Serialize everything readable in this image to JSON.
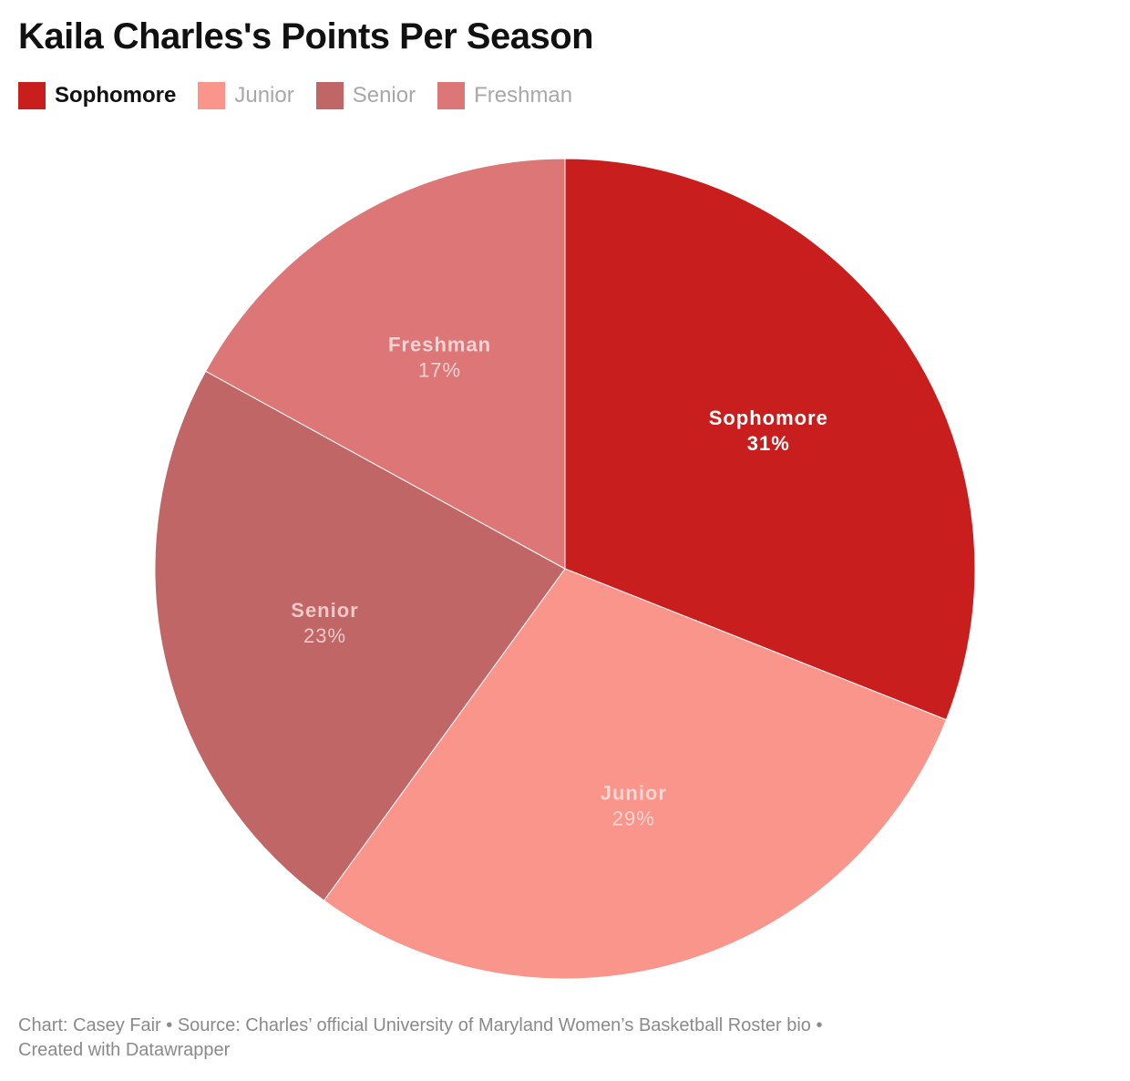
{
  "title": "Kaila Charles's Points Per Season",
  "legend": [
    {
      "label": "Sophomore",
      "color": "#c81e1e",
      "active": true
    },
    {
      "label": "Junior",
      "color": "#f9958b",
      "active": false
    },
    {
      "label": "Senior",
      "color": "#c06666",
      "active": false
    },
    {
      "label": "Freshman",
      "color": "#dd7777",
      "active": false
    }
  ],
  "chart_data": {
    "type": "pie",
    "categories": [
      "Sophomore",
      "Junior",
      "Senior",
      "Freshman"
    ],
    "values": [
      31,
      29,
      23,
      17
    ],
    "labels": [
      "31%",
      "29%",
      "23%",
      "17%"
    ],
    "colors": [
      "#c81e1e",
      "#f9958b",
      "#c06666",
      "#dd7777"
    ],
    "label_colors": [
      "#ffffff",
      "#f5d6d3",
      "#f0c8c8",
      "#f5d3d3"
    ],
    "title": "Kaila Charles's Points Per Season",
    "legend_position": "top-left"
  },
  "footer": {
    "line1": "Chart: Casey Fair • Source: Charles’ official University of Maryland Women’s Basketball Roster bio •",
    "line2": "Created with Datawrapper"
  }
}
